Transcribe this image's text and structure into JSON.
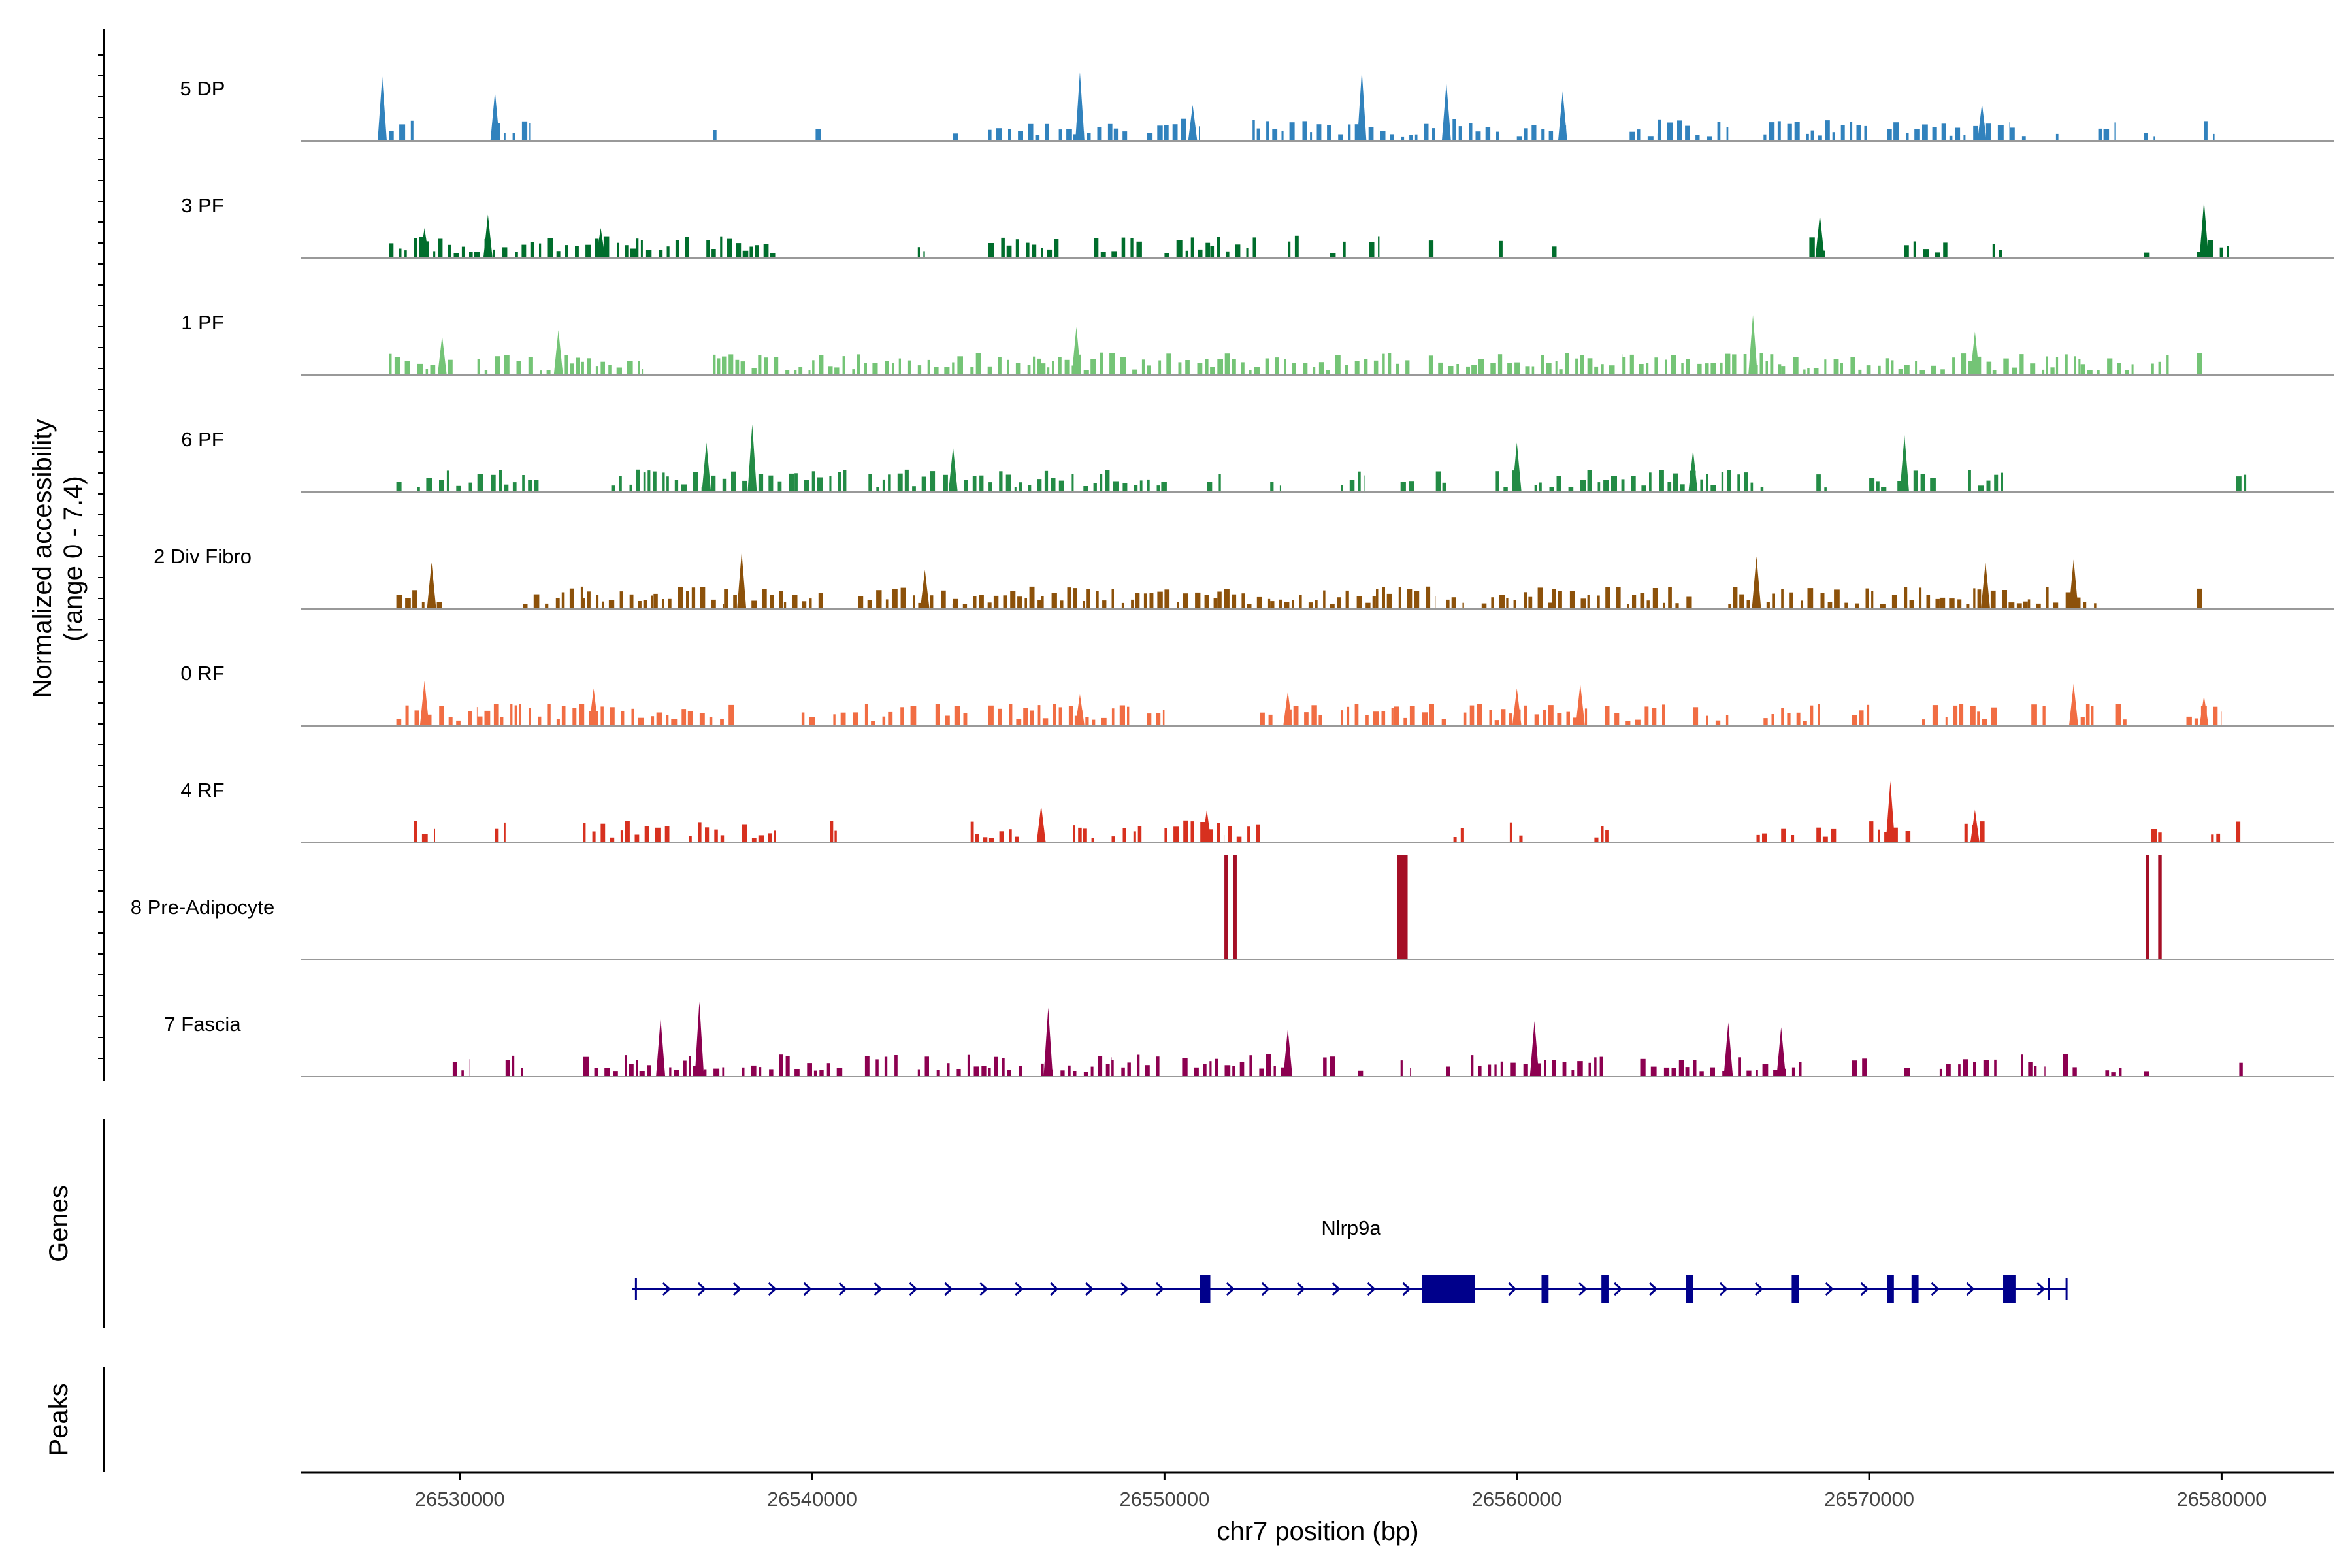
{
  "chart_data": {
    "type": "coverage",
    "title": "",
    "ylabel_line1": "Normalized accessibility",
    "ylabel_line2": "(range 0 - 7.4)",
    "xlabel": "chr7 position (bp)",
    "xlim": [
      26525500,
      26583200
    ],
    "ylim": [
      0,
      7.4
    ],
    "xticks": [
      26530000,
      26540000,
      26550000,
      26560000,
      26570000,
      26580000
    ],
    "xtick_labels": [
      "26530000",
      "26540000",
      "26550000",
      "26560000",
      "26570000",
      "26580000"
    ],
    "tracks": [
      {
        "name": "5 DP",
        "color": "#3182bd",
        "regions": [
          [
            26528000,
            26528800
          ],
          [
            26531000,
            26531300
          ],
          [
            26531500,
            26532000
          ],
          [
            26537200,
            26537400
          ],
          [
            26540100,
            26540300
          ],
          [
            26544000,
            26544200
          ],
          [
            26545000,
            26546800
          ],
          [
            26547000,
            26549000
          ],
          [
            26549500,
            26551000
          ],
          [
            26552500,
            26555800
          ],
          [
            26555800,
            26559500
          ],
          [
            26560000,
            26561500
          ],
          [
            26563200,
            26564000
          ],
          [
            26564000,
            26566000
          ],
          [
            26567000,
            26570000
          ],
          [
            26570500,
            26571500
          ],
          [
            26571500,
            26574000
          ],
          [
            26574000,
            26574500
          ],
          [
            26575300,
            26575500
          ],
          [
            26576500,
            26577000
          ],
          [
            26577800,
            26578100
          ],
          [
            26579500,
            26579800
          ]
        ],
        "peaks": [
          [
            26527800,
            4.3
          ],
          [
            26531000,
            3.3
          ],
          [
            26547600,
            4.6
          ],
          [
            26550800,
            2.4
          ],
          [
            26555600,
            4.7
          ],
          [
            26558000,
            3.9
          ],
          [
            26561300,
            3.3
          ],
          [
            26573200,
            2.5
          ]
        ]
      },
      {
        "name": "3 PF",
        "color": "#006d2c",
        "regions": [
          [
            26528000,
            26528500
          ],
          [
            26528700,
            26532500
          ],
          [
            26532500,
            26535000
          ],
          [
            26535000,
            26536500
          ],
          [
            26537000,
            26539000
          ],
          [
            26543000,
            26543200
          ],
          [
            26545000,
            26547000
          ],
          [
            26548000,
            26549500
          ],
          [
            26550000,
            26551300
          ],
          [
            26551300,
            26552600
          ],
          [
            26553500,
            26554000
          ],
          [
            26554700,
            26555200
          ],
          [
            26555800,
            26556100
          ],
          [
            26557500,
            26557700
          ],
          [
            26559500,
            26559700
          ],
          [
            26561000,
            26561200
          ],
          [
            26568300,
            26568800
          ],
          [
            26571000,
            26572300
          ],
          [
            26573500,
            26573800
          ],
          [
            26577800,
            26578100
          ],
          [
            26579300,
            26580200
          ]
        ],
        "peaks": [
          [
            26529000,
            2.0
          ],
          [
            26530800,
            2.9
          ],
          [
            26534000,
            2.0
          ],
          [
            26568600,
            2.9
          ],
          [
            26579500,
            3.8
          ]
        ]
      },
      {
        "name": "1 PF",
        "color": "#74c476",
        "regions": [
          [
            26528000,
            26530000
          ],
          [
            26530500,
            26534000
          ],
          [
            26534000,
            26535200
          ],
          [
            26537200,
            26543000
          ],
          [
            26543000,
            26546500
          ],
          [
            26546500,
            26551500
          ],
          [
            26551500,
            26557000
          ],
          [
            26557500,
            26563000
          ],
          [
            26563000,
            26565500
          ],
          [
            26565500,
            26567500
          ],
          [
            26567500,
            26571000
          ],
          [
            26571000,
            26573500
          ],
          [
            26573500,
            26576000
          ],
          [
            26576000,
            26577500
          ],
          [
            26578000,
            26578500
          ],
          [
            26579300,
            26579500
          ]
        ],
        "peaks": [
          [
            26529500,
            2.6
          ],
          [
            26532800,
            3.0
          ],
          [
            26547500,
            3.2
          ],
          [
            26566700,
            4.0
          ],
          [
            26573000,
            2.9
          ]
        ]
      },
      {
        "name": "6 PF",
        "color": "#238b45",
        "regions": [
          [
            26528200,
            26528400
          ],
          [
            26528800,
            26530500
          ],
          [
            26530500,
            26532300
          ],
          [
            26534300,
            26535000
          ],
          [
            26535000,
            26537000
          ],
          [
            26537000,
            26539500
          ],
          [
            26539500,
            26541000
          ],
          [
            26541600,
            26542000
          ],
          [
            26542000,
            26544000
          ],
          [
            26544300,
            26545500
          ],
          [
            26545500,
            26547500
          ],
          [
            26547700,
            26549500
          ],
          [
            26549500,
            26550200
          ],
          [
            26551200,
            26551600
          ],
          [
            26553000,
            26553300
          ],
          [
            26555000,
            26555700
          ],
          [
            26556700,
            26557100
          ],
          [
            26557700,
            26558000
          ],
          [
            26559400,
            26560000
          ],
          [
            26560500,
            26562000
          ],
          [
            26562000,
            26565500
          ],
          [
            26565500,
            26567000
          ],
          [
            26568500,
            26568800
          ],
          [
            26570000,
            26570500
          ],
          [
            26570800,
            26572000
          ],
          [
            26572800,
            26573800
          ],
          [
            26580400,
            26580700
          ]
        ],
        "peaks": [
          [
            26537000,
            3.3
          ],
          [
            26538300,
            4.5
          ],
          [
            26544000,
            3.0
          ],
          [
            26560000,
            3.3
          ],
          [
            26571000,
            3.8
          ],
          [
            26565000,
            2.8
          ]
        ]
      },
      {
        "name": "2 Div Fibro",
        "color": "#8c510a",
        "regions": [
          [
            26528200,
            26529500
          ],
          [
            26531800,
            26533500
          ],
          [
            26533500,
            26535500
          ],
          [
            26535500,
            26537500
          ],
          [
            26537500,
            26539200
          ],
          [
            26539200,
            26540500
          ],
          [
            26541300,
            26544000
          ],
          [
            26544000,
            26546500
          ],
          [
            26546500,
            26548500
          ],
          [
            26548500,
            26550000
          ],
          [
            26550000,
            26551500
          ],
          [
            26551500,
            26553000
          ],
          [
            26553000,
            26554400
          ],
          [
            26554500,
            26556000
          ],
          [
            26556000,
            26557700
          ],
          [
            26558000,
            26558500
          ],
          [
            26559000,
            26561000
          ],
          [
            26561000,
            26562000
          ],
          [
            26562000,
            26563500
          ],
          [
            26563500,
            26564500
          ],
          [
            26564500,
            26565000
          ],
          [
            26566000,
            26567500
          ],
          [
            26567500,
            26569000
          ],
          [
            26569000,
            26571000
          ],
          [
            26571000,
            26572000
          ],
          [
            26572000,
            26574500
          ],
          [
            26574500,
            26576500
          ],
          [
            26579300,
            26579500
          ]
        ],
        "peaks": [
          [
            26529200,
            3.1
          ],
          [
            26538000,
            3.8
          ],
          [
            26566800,
            3.5
          ],
          [
            26573300,
            3.1
          ],
          [
            26575800,
            3.3
          ],
          [
            26543200,
            2.6
          ]
        ]
      },
      {
        "name": "0 RF",
        "color": "#f16d43",
        "regions": [
          [
            26528200,
            26530500
          ],
          [
            26530500,
            26533000
          ],
          [
            26533200,
            26534000
          ],
          [
            26534000,
            26536000
          ],
          [
            26536000,
            26537800
          ],
          [
            26539700,
            26540200
          ],
          [
            26540600,
            26541300
          ],
          [
            26541500,
            26543000
          ],
          [
            26543500,
            26544400
          ],
          [
            26545000,
            26547000
          ],
          [
            26547000,
            26549000
          ],
          [
            26549500,
            26550000
          ],
          [
            26552700,
            26553200
          ],
          [
            26553500,
            26554500
          ],
          [
            26555000,
            26556500
          ],
          [
            26556500,
            26558000
          ],
          [
            26558500,
            26560000
          ],
          [
            26560000,
            26562000
          ],
          [
            26562500,
            26564200
          ],
          [
            26565000,
            26566000
          ],
          [
            26567000,
            26567300
          ],
          [
            26567500,
            26568600
          ],
          [
            26569500,
            26570000
          ],
          [
            26571500,
            26573700
          ],
          [
            26574600,
            26575000
          ],
          [
            26576000,
            26576500
          ],
          [
            26577000,
            26577300
          ],
          [
            26579000,
            26580000
          ]
        ],
        "peaks": [
          [
            26529000,
            3.0
          ],
          [
            26533800,
            2.5
          ],
          [
            26547600,
            2.1
          ],
          [
            26553500,
            2.3
          ],
          [
            26560000,
            2.5
          ],
          [
            26561800,
            2.8
          ],
          [
            26575800,
            2.8
          ],
          [
            26579500,
            2.0
          ]
        ]
      },
      {
        "name": "4 RF",
        "color": "#d7301f",
        "regions": [
          [
            26528700,
            26529300
          ],
          [
            26531000,
            26531300
          ],
          [
            26533500,
            26534000
          ],
          [
            26534000,
            26536000
          ],
          [
            26536500,
            26537500
          ],
          [
            26538000,
            26539000
          ],
          [
            26540500,
            26540700
          ],
          [
            26544500,
            26546000
          ],
          [
            26547400,
            26548000
          ],
          [
            26548500,
            26549500
          ],
          [
            26550000,
            26551700
          ],
          [
            26551800,
            26552700
          ],
          [
            26558200,
            26558500
          ],
          [
            26559800,
            26560200
          ],
          [
            26562200,
            26562600
          ],
          [
            26566800,
            26567100
          ],
          [
            26567500,
            26567900
          ],
          [
            26568500,
            26569100
          ],
          [
            26570000,
            26571300
          ],
          [
            26572700,
            26573400
          ],
          [
            26578000,
            26578300
          ],
          [
            26579700,
            26580000
          ],
          [
            26580400,
            26580600
          ]
        ],
        "peaks": [
          [
            26570600,
            4.1
          ],
          [
            26551200,
            2.2
          ],
          [
            26546500,
            2.5
          ],
          [
            26573000,
            2.2
          ]
        ]
      },
      {
        "name": "8 Pre-Adipocyte",
        "color": "#a50f26",
        "regions": [
          [
            26551700,
            26551800
          ],
          [
            26551950,
            26552050
          ],
          [
            26556600,
            26556900
          ],
          [
            26577850,
            26577950
          ],
          [
            26578200,
            26578300
          ]
        ],
        "peaks": [
          [
            26551750,
            7.0
          ],
          [
            26552000,
            7.0
          ],
          [
            26556750,
            7.0
          ],
          [
            26577900,
            7.0
          ],
          [
            26578250,
            7.0
          ]
        ]
      },
      {
        "name": "7 Fascia",
        "color": "#8c0050",
        "regions": [
          [
            26529800,
            26530300
          ],
          [
            26531300,
            26531800
          ],
          [
            26533500,
            26535000
          ],
          [
            26535000,
            26537500
          ],
          [
            26538000,
            26539500
          ],
          [
            26539500,
            26541000
          ],
          [
            26541500,
            26542500
          ],
          [
            26543000,
            26545000
          ],
          [
            26545000,
            26546000
          ],
          [
            26546500,
            26548500
          ],
          [
            26548500,
            26550000
          ],
          [
            26550500,
            26553500
          ],
          [
            26554500,
            26555000
          ],
          [
            26555500,
            26555700
          ],
          [
            26556700,
            26557000
          ],
          [
            26558000,
            26558300
          ],
          [
            26558700,
            26561000
          ],
          [
            26561000,
            26562500
          ],
          [
            26563500,
            26565000
          ],
          [
            26565000,
            26568200
          ],
          [
            26569500,
            26570000
          ],
          [
            26571000,
            26571300
          ],
          [
            26572000,
            26573700
          ],
          [
            26574300,
            26575000
          ],
          [
            26575500,
            26576000
          ],
          [
            26576700,
            26577200
          ],
          [
            26577800,
            26578000
          ],
          [
            26580500,
            26580600
          ]
        ],
        "peaks": [
          [
            26536800,
            5.0
          ],
          [
            26535700,
            3.9
          ],
          [
            26546700,
            4.6
          ],
          [
            26560500,
            3.7
          ],
          [
            26566000,
            3.6
          ],
          [
            26567500,
            3.3
          ],
          [
            26553500,
            3.2
          ]
        ]
      }
    ],
    "genes": {
      "label": "Genes",
      "name": "Nlrp9a",
      "color": "#00008b",
      "strand": "+",
      "start": 26534900,
      "end": 26575600,
      "exons": [
        [
          26551000,
          26551300
        ],
        [
          26557300,
          26558800
        ],
        [
          26560700,
          26560900
        ],
        [
          26562400,
          26562600
        ],
        [
          26564800,
          26565000
        ],
        [
          26567800,
          26568000
        ],
        [
          26570500,
          26570700
        ],
        [
          26571200,
          26571400
        ],
        [
          26573800,
          26574150
        ]
      ],
      "endmarks": [
        26535000,
        26575100,
        26575600
      ]
    },
    "peaks_panel": {
      "label": "Peaks"
    }
  }
}
